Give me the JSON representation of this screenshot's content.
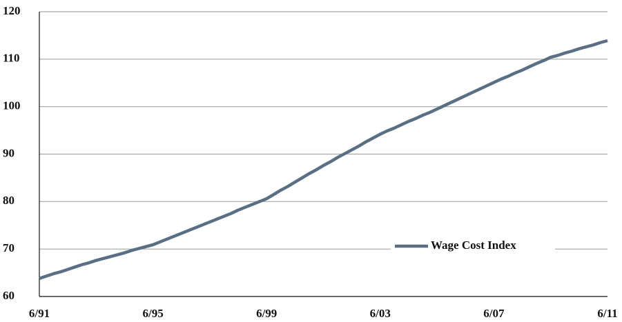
{
  "chart_data": {
    "type": "line",
    "categories": [
      "6/91",
      null,
      null,
      null,
      null,
      null,
      null,
      null,
      null,
      null,
      null,
      null,
      null,
      null,
      null,
      null,
      "6/95",
      null,
      null,
      null,
      null,
      null,
      null,
      null,
      null,
      null,
      null,
      null,
      null,
      null,
      null,
      null,
      "6/99",
      null,
      null,
      null,
      null,
      null,
      null,
      null,
      null,
      null,
      null,
      null,
      null,
      null,
      null,
      null,
      "6/03",
      null,
      null,
      null,
      null,
      null,
      null,
      null,
      null,
      null,
      null,
      null,
      null,
      null,
      null,
      null,
      "6/07",
      null,
      null,
      null,
      null,
      null,
      null,
      null,
      null,
      null,
      null,
      null,
      null,
      null,
      null,
      null,
      "6/11"
    ],
    "series": [
      {
        "name": "Wage Cost Index",
        "color": "#5a6f84",
        "values": [
          63.8,
          64.3,
          64.8,
          65.2,
          65.7,
          66.2,
          66.7,
          67.1,
          67.6,
          68.0,
          68.4,
          68.8,
          69.2,
          69.7,
          70.1,
          70.5,
          70.9,
          71.5,
          72.1,
          72.7,
          73.3,
          73.9,
          74.5,
          75.1,
          75.7,
          76.3,
          76.9,
          77.5,
          78.2,
          78.8,
          79.4,
          80.0,
          80.6,
          81.5,
          82.4,
          83.2,
          84.1,
          85.0,
          85.9,
          86.7,
          87.6,
          88.4,
          89.3,
          90.1,
          90.9,
          91.7,
          92.6,
          93.4,
          94.2,
          94.9,
          95.5,
          96.2,
          96.9,
          97.5,
          98.2,
          98.8,
          99.5,
          100.2,
          100.9,
          101.6,
          102.3,
          103.0,
          103.7,
          104.4,
          105.1,
          105.8,
          106.4,
          107.1,
          107.7,
          108.4,
          109.1,
          109.7,
          110.4,
          110.8,
          111.3,
          111.7,
          112.2,
          112.6,
          113.0,
          113.5,
          113.9
        ]
      }
    ],
    "ylim": [
      60,
      120
    ],
    "yticks": [
      60,
      70,
      80,
      90,
      100,
      110,
      120
    ],
    "grid": true,
    "legend": "lower right"
  }
}
